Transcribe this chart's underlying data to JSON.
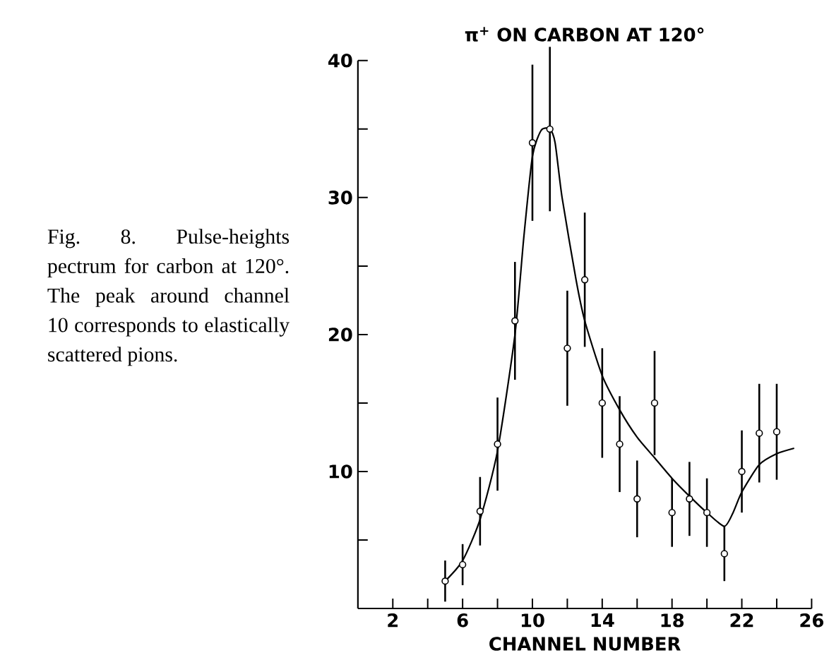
{
  "chart_data": {
    "type": "scatter",
    "title": "π$^{+}$ ON CARBON AT 120°",
    "xlabel": "CHANNEL NUMBER",
    "annotations": [
      "Fig. 8. Pulse-heights pectrum for carbon at 120°. The peak around channel 10 corresponds to elastically scattered pions."
    ],
    "xlim": [
      0,
      26
    ],
    "ylim": [
      0,
      40
    ],
    "xticks": [
      2,
      {
        "value": 4,
        "label": null
      },
      6,
      {
        "value": 8,
        "label": null
      },
      10,
      {
        "value": 12,
        "label": null
      },
      14,
      {
        "value": 16,
        "label": null
      },
      18,
      {
        "value": 20,
        "label": null
      },
      22,
      {
        "value": 24,
        "label": null
      },
      26
    ],
    "yticks": [
      {
        "value": 5,
        "label": null
      },
      10,
      {
        "value": 15,
        "label": null
      },
      20,
      {
        "value": 25,
        "label": null
      },
      30,
      {
        "value": 35,
        "label": null
      },
      40
    ],
    "marker": "circle",
    "series": [
      {
        "color": "#000000",
        "x": [
          5,
          6,
          7,
          8,
          9,
          10,
          11,
          12,
          13,
          14,
          15,
          16,
          17,
          18,
          19,
          20,
          21,
          22,
          23,
          24
        ],
        "values": [
          2,
          3.2,
          7.1,
          12,
          21,
          34,
          35,
          19,
          24,
          15,
          12,
          8,
          15,
          7,
          8,
          7,
          4,
          10,
          12.8,
          12.9
        ],
        "errors": [
          1.5,
          1.5,
          2.5,
          3.4,
          4.3,
          5.7,
          6,
          4.2,
          4.9,
          4,
          3.5,
          2.8,
          3.8,
          2.5,
          2.7,
          2.5,
          2,
          3,
          3.6,
          3.5
        ]
      },
      {
        "type": "line",
        "color": "#000000",
        "marker": "none",
        "x": [
          5,
          6,
          7,
          8,
          9,
          9.5,
          10,
          10.5,
          11,
          11.3,
          11.7,
          12.5,
          13,
          14,
          15,
          16,
          17,
          18,
          19,
          20,
          21,
          21.5,
          22,
          23,
          24,
          25
        ],
        "values": [
          2,
          3.5,
          6.5,
          11.5,
          20,
          27,
          33,
          34.9,
          35,
          34,
          30,
          24,
          21,
          17,
          14.5,
          12.5,
          11,
          9.5,
          8.2,
          7,
          6,
          7,
          8.5,
          10.5,
          11.3,
          11.7
        ]
      }
    ]
  }
}
